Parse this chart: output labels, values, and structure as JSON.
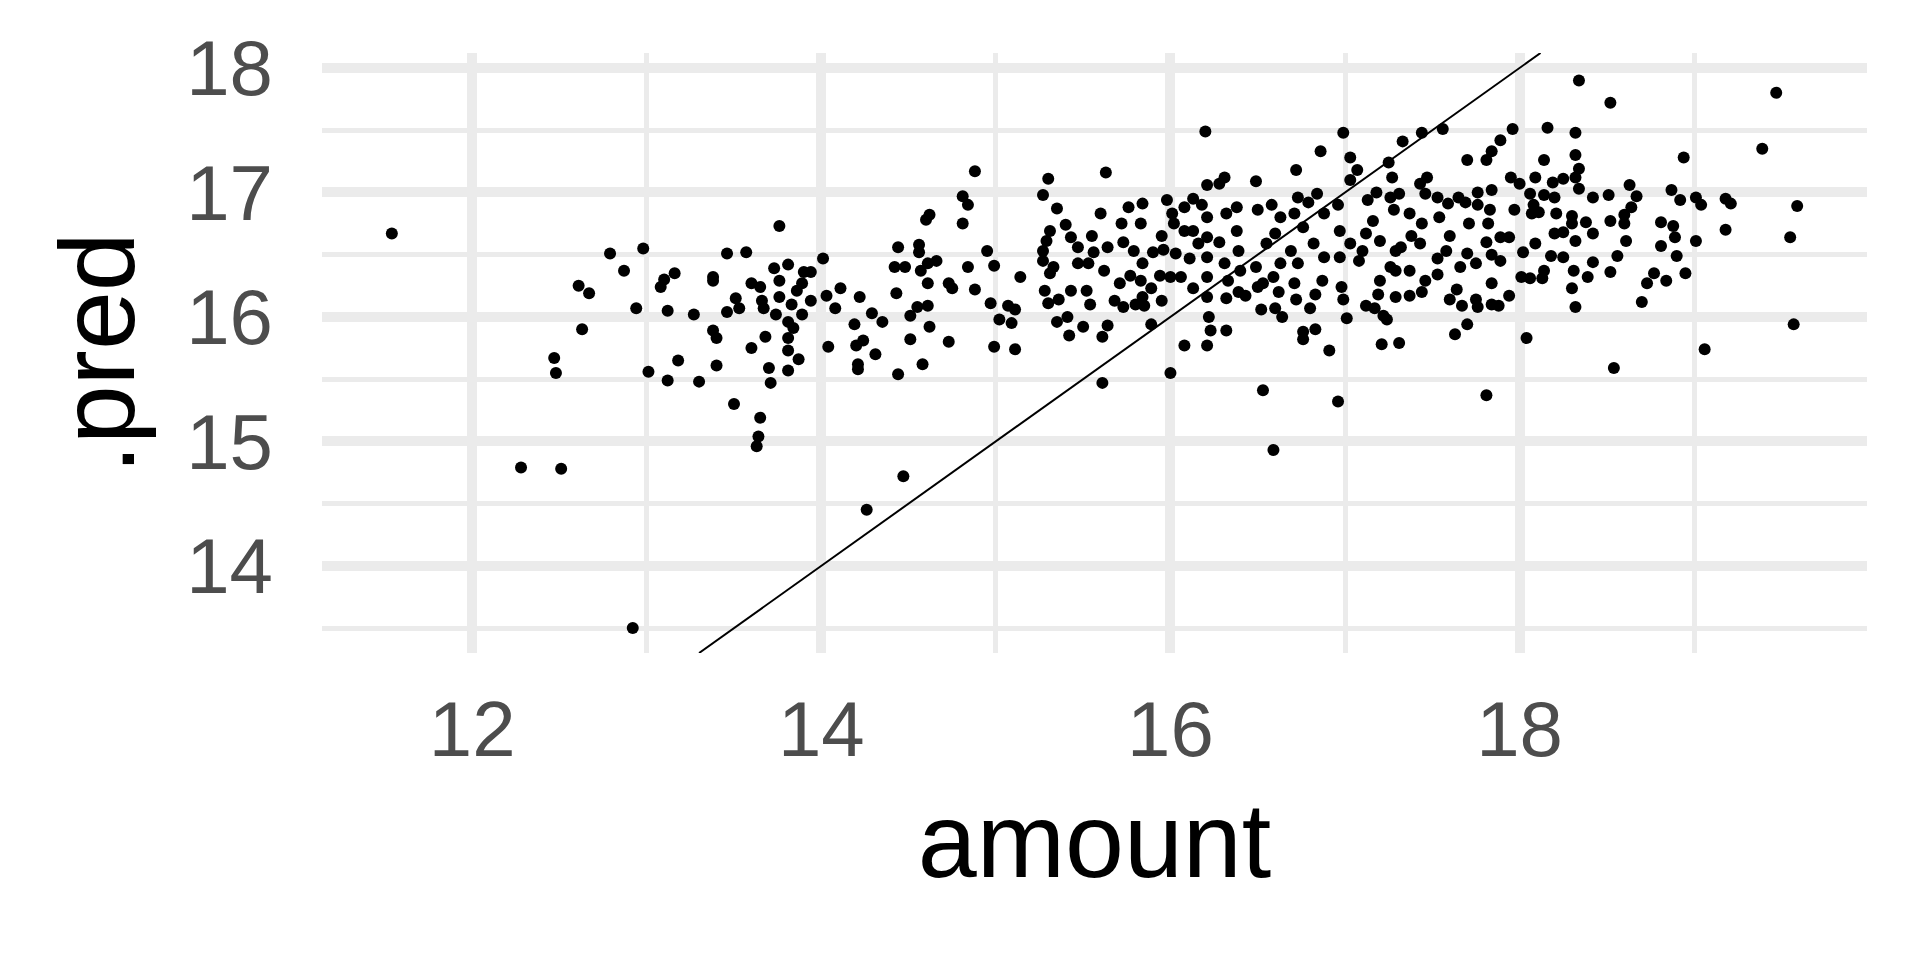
{
  "chart_data": {
    "type": "scatter",
    "xlabel": "amount",
    "ylabel": ".pred",
    "xlim": [
      11.14,
      19.99
    ],
    "ylim": [
      13.3,
      18.12
    ],
    "xticks": [
      12,
      {
        "value": 13,
        "label": null
      },
      14,
      {
        "value": 15,
        "label": null
      },
      16,
      {
        "value": 17,
        "label": null
      },
      18,
      {
        "value": 19,
        "label": null
      }
    ],
    "yticks": [
      {
        "value": 13.5,
        "label": null
      },
      14,
      {
        "value": 14.5,
        "label": null
      },
      15,
      {
        "value": 15.5,
        "label": null
      },
      16,
      {
        "value": 16.5,
        "label": null
      },
      17,
      {
        "value": 17.5,
        "label": null
      },
      18
    ],
    "grid": true,
    "marker": "circle",
    "series": [
      {
        "color": "#000000",
        "x": [
          11.54,
          12.79,
          12.98,
          12.87,
          12.61,
          12.67,
          13.16,
          13.1,
          13.08,
          13.38,
          13.38,
          13.46,
          13.57,
          13.76,
          14.01,
          13.73,
          13.81,
          13.76,
          13.9,
          13.94,
          13.89,
          13.6,
          13.65,
          13.86,
          13.76,
          13.51,
          13.53,
          13.66,
          13.67,
          13.83,
          13.94,
          14.03,
          14.08,
          13.74,
          13.89,
          12.94,
          13.12,
          13.27,
          13.46,
          12.63,
          13.38,
          13.4,
          13.68,
          13.81,
          13.84,
          13.81,
          13.6,
          13.81,
          14.04,
          14.11,
          13.87,
          13.7,
          13.81,
          13.71,
          12.47,
          12.48,
          13.01,
          13.12,
          13.18,
          13.3,
          13.4,
          13.5,
          13.65,
          13.64,
          13.63,
          12.28,
          12.51,
          12.92,
          14.21,
          14.21,
          14.31,
          14.44,
          14.58,
          14.26,
          14.47,
          15.61,
          16.0,
          16.53,
          16.59,
          16.96,
          17.81,
          18.54,
          14.22,
          14.19,
          14.29,
          14.35,
          14.2,
          14.24,
          14.44,
          14.42,
          14.48,
          14.43,
          14.56,
          14.56,
          14.6,
          14.62,
          14.57,
          14.61,
          14.66,
          14.61,
          14.55,
          14.51,
          14.61,
          14.62,
          14.51,
          14.73,
          14.75,
          14.73,
          14.81,
          14.84,
          14.88,
          14.81,
          14.84,
          14.88,
          14.95,
          14.99,
          14.97,
          15.02,
          15.07,
          15.11,
          15.09,
          15.14,
          14.99,
          15.11,
          15.3,
          15.27,
          15.35,
          15.4,
          15.31,
          15.27,
          15.27,
          15.29,
          15.33,
          15.31,
          15.43,
          15.47,
          15.28,
          15.3,
          15.36,
          15.35,
          15.41,
          15.42,
          15.5,
          15.43,
          15.52,
          15.47,
          15.56,
          15.53,
          15.55,
          15.54,
          15.6,
          15.63,
          15.64,
          15.62,
          15.64,
          15.61,
          15.68,
          15.73,
          15.8,
          15.85,
          15.71,
          15.72,
          15.76,
          15.84,
          15.83,
          15.73,
          15.79,
          15.84,
          15.77,
          15.83,
          15.89,
          15.84,
          15.89,
          15.9,
          15.95,
          15.98,
          16.01,
          16.02,
          15.96,
          15.94,
          16.0,
          16.06,
          15.95,
          16.03,
          16.08,
          16.13,
          16.18,
          16.08,
          16.13,
          16.2,
          16.21,
          16.28,
          16.31,
          16.21,
          16.21,
          16.21,
          16.21,
          16.21,
          16.22,
          16.23,
          16.13,
          16.11,
          16.16,
          16.08,
          16.21,
          16.32,
          16.32,
          16.39,
          16.43,
          16.38,
          16.32,
          16.38,
          16.28,
          16.39,
          16.31,
          16.4,
          16.33,
          16.49,
          16.5,
          16.49,
          16.5,
          16.53,
          16.52,
          16.58,
          16.63,
          16.6,
          16.55,
          16.63,
          16.59,
          16.62,
          16.6,
          16.64,
          16.72,
          16.73,
          16.79,
          16.71,
          16.76,
          16.69,
          16.73,
          16.71,
          16.72,
          16.76,
          16.76,
          16.83,
          16.8,
          16.83,
          16.84,
          16.86,
          16.88,
          16.82,
          16.88,
          16.87,
          16.91,
          16.99,
          17.03,
          17.07,
          17.03,
          16.96,
          16.97,
          16.97,
          16.98,
          16.99,
          17.01,
          17.03,
          18.34,
          18.52,
          19.47,
          19.39,
          18.94,
          18.16,
          18.32,
          17.96,
          17.89,
          17.84,
          17.81,
          17.7,
          17.56,
          17.44,
          17.33,
          17.25,
          17.27,
          18.14,
          18.32,
          18.34,
          18.32,
          17.95,
          18.0,
          18.09,
          18.19,
          18.25,
          18.34,
          18.42,
          18.51,
          18.63,
          18.67,
          18.64,
          18.6,
          18.6,
          18.52,
          18.42,
          18.61,
          18.56,
          18.52,
          18.87,
          18.92,
          19.01,
          19.04,
          19.18,
          19.21,
          19.59,
          18.81,
          18.88,
          18.89,
          19.01,
          19.18,
          19.55,
          18.81,
          18.9,
          18.95,
          18.77,
          18.73,
          18.84,
          18.7,
          19.57,
          19.06,
          18.04,
          18.32,
          18.3,
          18.39,
          18.42,
          18.31,
          18.25,
          18.18,
          18.13,
          18.14,
          18.01,
          18.06,
          17.94,
          17.84,
          17.88,
          17.84,
          17.76,
          17.75,
          17.67,
          17.63,
          17.7,
          17.6,
          17.64,
          17.44,
          17.37,
          17.29,
          17.19,
          17.22,
          17.24,
          17.17,
          17.12,
          17.21,
          17.31,
          17.2,
          17.29,
          17.37,
          17.46,
          17.53,
          17.53,
          17.58,
          17.7,
          17.75,
          17.66,
          17.84,
          17.89,
          17.81,
          17.89,
          17.94,
          18.02,
          18.09,
          18.2,
          18.25,
          18.32,
          18.3,
          18.38,
          18.21,
          18.3,
          18.07,
          18.11,
          17.97,
          18.14,
          18.2,
          18.08,
          18.06,
          17.84,
          17.76,
          17.76,
          17.83,
          17.82,
          17.71,
          17.65,
          17.69,
          17.59,
          17.54,
          17.47,
          17.43,
          17.46,
          17.53,
          17.37,
          17.44,
          17.31,
          17.26,
          17.18,
          17.13,
          17.16,
          17.28,
          17.12,
          17.2,
          17.29,
          17.32,
          17.43,
          17.38,
          17.6,
          17.08,
          17.1,
          17.26
        ],
        "values": [
          16.67,
          16.51,
          16.55,
          16.37,
          16.25,
          16.19,
          16.35,
          16.3,
          16.24,
          16.32,
          16.29,
          16.51,
          16.52,
          16.73,
          16.47,
          16.39,
          16.42,
          16.29,
          16.36,
          16.36,
          16.27,
          16.27,
          16.24,
          16.21,
          16.16,
          16.15,
          16.07,
          16.13,
          16.07,
          16.1,
          16.13,
          16.17,
          16.07,
          16.02,
          16.02,
          16.07,
          16.05,
          16.02,
          16.04,
          15.9,
          15.89,
          15.83,
          15.84,
          15.96,
          15.91,
          15.83,
          15.75,
          15.73,
          15.76,
          16.23,
          15.66,
          15.59,
          15.57,
          15.47,
          15.67,
          15.55,
          15.56,
          15.49,
          15.65,
          15.48,
          15.61,
          15.3,
          15.19,
          15.04,
          14.96,
          14.79,
          14.78,
          13.5,
          15.62,
          15.58,
          15.7,
          15.54,
          15.62,
          14.45,
          14.72,
          15.47,
          15.55,
          15.41,
          14.93,
          15.32,
          15.37,
          15.59,
          16.16,
          15.94,
          16.03,
          15.96,
          15.77,
          15.81,
          16.56,
          16.4,
          16.4,
          16.19,
          16.58,
          16.52,
          16.78,
          16.82,
          16.37,
          16.43,
          16.45,
          16.27,
          16.08,
          16.01,
          16.09,
          15.92,
          15.82,
          16.27,
          16.23,
          15.8,
          16.97,
          16.9,
          17.17,
          16.75,
          16.4,
          16.22,
          16.53,
          16.41,
          16.11,
          15.98,
          16.09,
          16.06,
          15.95,
          16.32,
          15.76,
          15.74,
          17.11,
          16.98,
          16.87,
          16.74,
          16.69,
          16.53,
          16.45,
          16.61,
          16.4,
          16.35,
          16.64,
          16.56,
          16.21,
          16.11,
          16.14,
          15.96,
          16.0,
          15.85,
          15.92,
          16.21,
          16.21,
          16.43,
          16.52,
          16.43,
          16.65,
          16.1,
          16.83,
          17.16,
          16.56,
          16.37,
          15.93,
          15.84,
          16.13,
          16.08,
          16.1,
          16.09,
          16.27,
          16.75,
          16.88,
          16.91,
          16.75,
          16.6,
          16.53,
          16.43,
          16.33,
          16.29,
          16.23,
          16.16,
          15.94,
          16.52,
          16.65,
          16.94,
          16.83,
          16.75,
          16.54,
          16.33,
          16.32,
          16.32,
          16.13,
          16.51,
          16.88,
          16.95,
          16.9,
          16.69,
          16.69,
          17.49,
          17.06,
          17.07,
          17.12,
          16.8,
          16.64,
          16.48,
          16.32,
          16.16,
          16.0,
          15.89,
          16.23,
          16.47,
          16.59,
          15.77,
          15.77,
          15.89,
          16.15,
          16.2,
          16.17,
          16.88,
          16.83,
          16.69,
          16.6,
          16.53,
          16.43,
          16.37,
          16.29,
          17.09,
          16.86,
          16.4,
          16.24,
          16.27,
          16.06,
          16.9,
          16.8,
          16.67,
          16.59,
          16.43,
          16.32,
          16.2,
          16.07,
          16.0,
          17.18,
          16.96,
          16.92,
          16.83,
          16.72,
          16.53,
          16.43,
          16.27,
          16.14,
          15.88,
          15.82,
          15.9,
          16.07,
          16.18,
          16.99,
          17.33,
          16.83,
          16.59,
          16.48,
          16.29,
          15.73,
          17.48,
          17.28,
          17.18,
          17.1,
          16.9,
          16.69,
          16.48,
          16.24,
          16.14,
          15.99,
          16.59,
          17.9,
          17.72,
          17.8,
          17.35,
          17.28,
          17.52,
          17.48,
          17.51,
          17.42,
          17.33,
          17.26,
          17.26,
          17.51,
          17.48,
          17.41,
          17.24,
          17.12,
          17.26,
          17.3,
          17.19,
          17.12,
          17.12,
          17.07,
          17.12,
          17.08,
          17.11,
          17.03,
          16.96,
          16.98,
          17.06,
          16.97,
          16.88,
          16.82,
          16.75,
          16.77,
          16.67,
          16.61,
          16.49,
          16.36,
          17.02,
          16.94,
          16.96,
          16.9,
          16.95,
          16.91,
          16.89,
          16.76,
          16.73,
          16.64,
          16.61,
          16.7,
          16.64,
          16.57,
          16.49,
          16.35,
          16.35,
          16.27,
          16.29,
          16.12,
          15.94,
          15.74,
          15.83,
          16.08,
          16.23,
          16.32,
          16.44,
          16.37,
          16.48,
          16.49,
          16.31,
          16.37,
          16.32,
          16.31,
          16.17,
          16.27,
          16.09,
          16.1,
          16.08,
          16.14,
          16.09,
          15.86,
          15.94,
          16.14,
          16.22,
          16.2,
          16.17,
          16.16,
          16.18,
          16.01,
          15.98,
          16.07,
          16.09,
          15.78,
          15.79,
          16.29,
          16.37,
          16.37,
          16.29,
          16.34,
          16.47,
          16.53,
          16.51,
          16.43,
          16.4,
          16.5,
          16.45,
          16.6,
          16.64,
          16.64,
          16.52,
          16.59,
          16.67,
          16.68,
          16.61,
          16.75,
          16.76,
          16.83,
          16.81,
          16.83,
          16.84,
          16.86,
          16.98,
          16.96,
          16.9,
          16.99,
          17.02,
          17.0,
          16.9,
          16.86,
          16.75,
          16.75,
          16.96,
          16.92,
          16.91,
          16.8,
          17.12,
          17.07,
          16.99,
          16.96,
          16.83,
          16.75,
          16.99,
          16.96,
          17.0,
          16.94,
          16.77,
          16.86,
          16.67,
          16.61,
          16.53,
          16.56,
          16.59,
          16.65,
          16.65,
          16.45,
          16.53,
          16.4
        ]
      },
      {
        "type": "line",
        "color": "#000000",
        "marker": "none",
        "x": [
          13.3,
          18.12
        ],
        "values": [
          13.3,
          18.12
        ]
      }
    ]
  }
}
